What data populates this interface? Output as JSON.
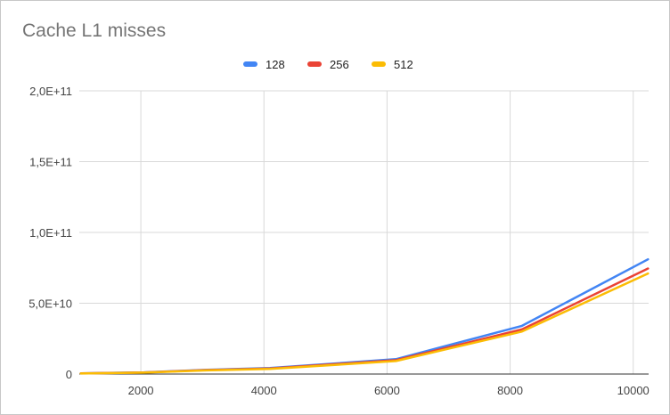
{
  "chart_data": {
    "type": "line",
    "title": "Cache L1 misses",
    "xlabel": "",
    "ylabel": "",
    "x": [
      1024,
      2048,
      3072,
      4096,
      6144,
      8192,
      10240
    ],
    "xlim": [
      1000,
      10250
    ],
    "ylim": [
      0,
      200000000000
    ],
    "x_ticks": [
      2000,
      4000,
      6000,
      8000,
      10000
    ],
    "x_tick_labels": [
      "2000",
      "4000",
      "6000",
      "8000",
      "10000"
    ],
    "y_ticks": [
      0,
      50000000000,
      100000000000,
      150000000000,
      200000000000
    ],
    "y_tick_labels": [
      "0",
      "5,0E+10",
      "1,0E+11",
      "1,5E+11",
      "2,0E+11"
    ],
    "grid": true,
    "legend_position": "top-center",
    "series": [
      {
        "name": "128",
        "color": "#4285f4",
        "values": [
          500000000,
          1200000000,
          3000000000,
          4200000000,
          10500000000,
          34000000000,
          81000000000
        ]
      },
      {
        "name": "256",
        "color": "#ea4335",
        "values": [
          450000000,
          1100000000,
          2800000000,
          3900000000,
          9800000000,
          31500000000,
          74500000000
        ]
      },
      {
        "name": "512",
        "color": "#fbbc04",
        "values": [
          400000000,
          1000000000,
          2600000000,
          3600000000,
          9200000000,
          30000000000,
          71000000000
        ]
      }
    ]
  }
}
